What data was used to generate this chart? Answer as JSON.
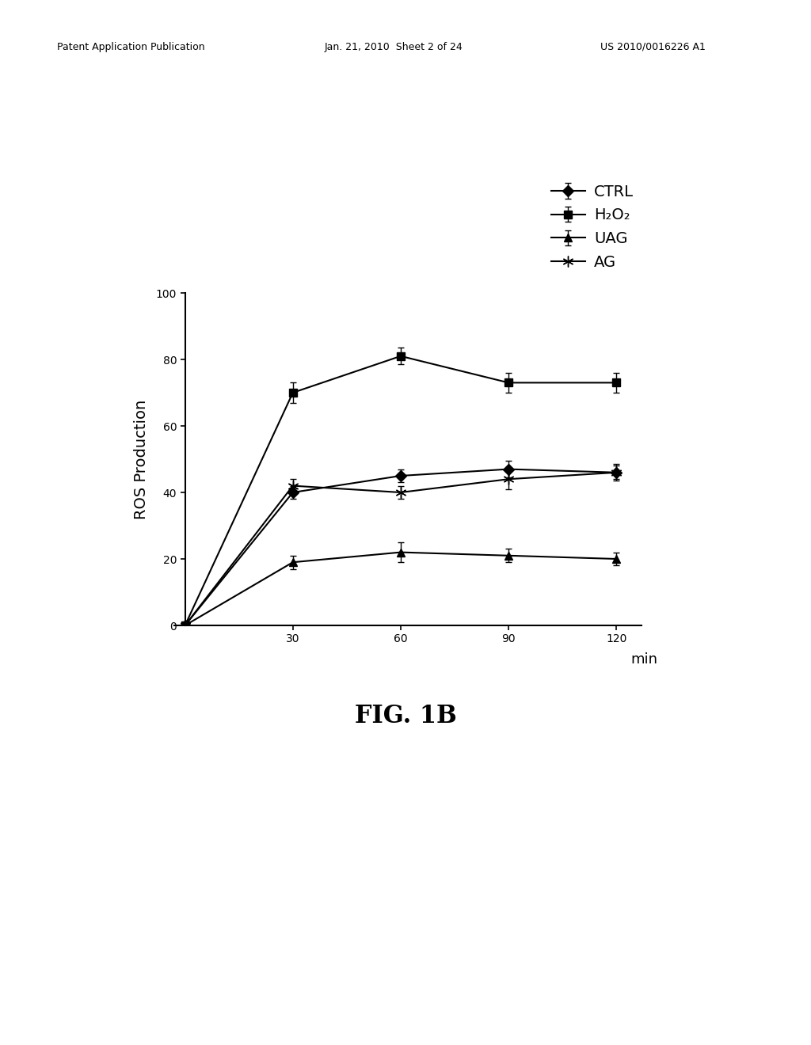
{
  "x": [
    0,
    30,
    60,
    90,
    120
  ],
  "ctrl": [
    0,
    40,
    45,
    47,
    46
  ],
  "ctrl_err": [
    0,
    2,
    2,
    2.5,
    2
  ],
  "h2o2": [
    0,
    70,
    81,
    73,
    73
  ],
  "h2o2_err": [
    0,
    3,
    2.5,
    3,
    3
  ],
  "uag": [
    0,
    19,
    22,
    21,
    20
  ],
  "uag_err": [
    0,
    2,
    3,
    2,
    2
  ],
  "ag": [
    0,
    42,
    40,
    44,
    46
  ],
  "ag_err": [
    0,
    2,
    2,
    3,
    2.5
  ],
  "xlabel": "min",
  "ylabel": "ROS Production",
  "ylim": [
    0,
    100
  ],
  "xlim": [
    -3,
    127
  ],
  "xticks": [
    30,
    60,
    90,
    120
  ],
  "yticks": [
    0,
    20,
    40,
    60,
    80,
    100
  ],
  "legend_labels": [
    "CTRL",
    "H₂O₂",
    "UAG",
    "AG"
  ],
  "fig_caption": "FIG. 1B",
  "line_color": "#000000",
  "bg_color": "#ffffff",
  "axis_fontsize": 14,
  "tick_fontsize": 13,
  "legend_fontsize": 14,
  "caption_fontsize": 22,
  "header_fontsize": 9,
  "header_left": "Patent Application Publication",
  "header_center": "Jan. 21, 2010  Sheet 2 of 24",
  "header_right": "US 2010/0016226 A1"
}
